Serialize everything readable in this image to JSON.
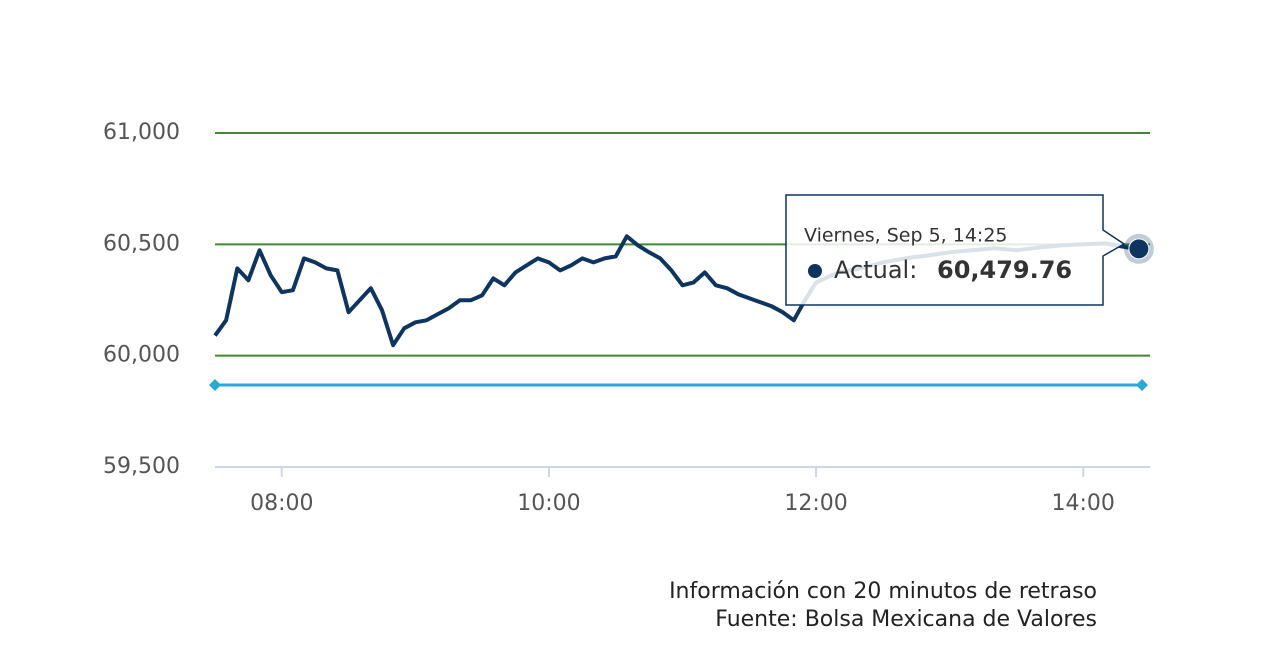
{
  "chart_data": {
    "type": "line",
    "x": [
      "07:30",
      "07:35",
      "07:40",
      "07:45",
      "07:50",
      "07:55",
      "08:00",
      "08:05",
      "08:10",
      "08:15",
      "08:20",
      "08:25",
      "08:30",
      "08:35",
      "08:40",
      "08:45",
      "08:50",
      "08:55",
      "09:00",
      "09:05",
      "09:10",
      "09:15",
      "09:20",
      "09:25",
      "09:30",
      "09:35",
      "09:40",
      "09:45",
      "09:50",
      "09:55",
      "10:00",
      "10:05",
      "10:10",
      "10:15",
      "10:20",
      "10:25",
      "10:30",
      "10:35",
      "10:40",
      "10:45",
      "10:50",
      "10:55",
      "11:00",
      "11:05",
      "11:10",
      "11:15",
      "11:20",
      "11:25",
      "11:30",
      "11:35",
      "11:40",
      "11:45",
      "11:50",
      "11:55",
      "12:00",
      "12:10",
      "12:20",
      "12:30",
      "12:40",
      "12:50",
      "13:00",
      "13:10",
      "13:20",
      "13:30",
      "13:40",
      "13:50",
      "14:00",
      "14:10",
      "14:20",
      "14:25"
    ],
    "series": [
      {
        "name": "Actual",
        "color": "#0d3560",
        "values": [
          60090,
          60159,
          60392,
          60339,
          60473,
          60361,
          60285,
          60294,
          60437,
          60419,
          60392,
          60383,
          60195,
          60249,
          60303,
          60204,
          60047,
          60123,
          60150,
          60159,
          60186,
          60213,
          60249,
          60249,
          60271,
          60347,
          60316,
          60374,
          60406,
          60437,
          60419,
          60383,
          60406,
          60437,
          60419,
          60437,
          60446,
          60536,
          60495,
          60464,
          60437,
          60383,
          60316,
          60329,
          60374,
          60316,
          60303,
          60276,
          60258,
          60240,
          60222,
          60195,
          60159,
          60249,
          60329,
          60374,
          60392,
          60419,
          60437,
          60450,
          60464,
          60473,
          60482,
          60473,
          60486,
          60495,
          60500,
          60504,
          60486,
          60479.76
        ]
      }
    ],
    "xlim": [
      "07:30",
      "14:30"
    ],
    "xticks": [
      "08:00",
      "10:00",
      "12:00",
      "14:00"
    ],
    "ylim": [
      59500,
      61000
    ],
    "yticks": [
      {
        "value": 59500,
        "label": "59,500"
      },
      {
        "value": 60000,
        "label": "60,000"
      },
      {
        "value": 60500,
        "label": "60,500"
      },
      {
        "value": 61000,
        "label": "61,000"
      }
    ],
    "grid": true,
    "grid_color": "#3d8b2e",
    "reference_line": {
      "value": 59868,
      "color": "#29a9d6"
    },
    "tooltip": {
      "header": "Viernes, Sep 5, 14:25",
      "label": "Actual:",
      "value_label": "60,479.76"
    },
    "notes": [
      "Información con 20 minutos de retraso",
      "Fuente: Bolsa Mexicana de Valores"
    ]
  }
}
